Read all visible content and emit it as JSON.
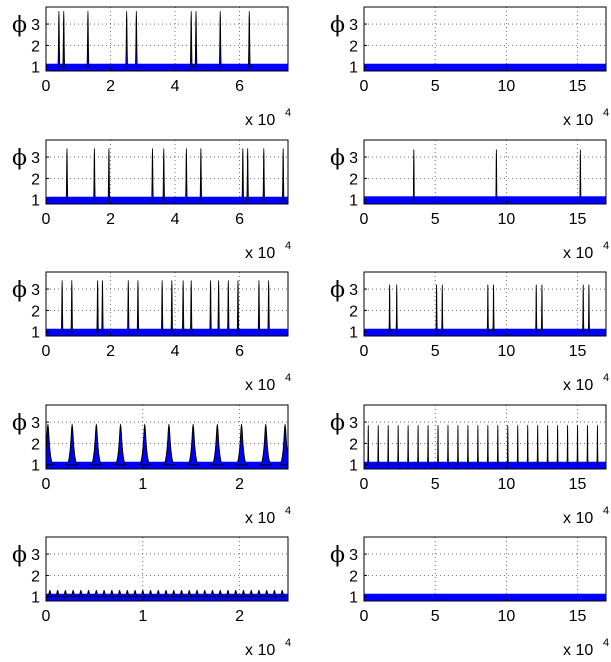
{
  "figure": {
    "y_symbol": "ϕ",
    "yticks": [
      1,
      2,
      3
    ],
    "exponent_base": "x 10",
    "exponent_power": "4",
    "colors": {
      "fill": "#0000ff",
      "edge": "#000000",
      "grid": "#555555"
    }
  },
  "chart_data": [
    {
      "type": "area",
      "panel": "row1-left",
      "ylim": [
        0.8,
        3.8
      ],
      "xlim": [
        0,
        7.5
      ],
      "xticks": [
        0,
        2,
        4,
        6
      ],
      "baseline": 1.0,
      "peak_height": 3.6,
      "peak_width": 0.04,
      "peaks": [
        0.4,
        0.55,
        1.3,
        2.5,
        2.8,
        4.5,
        4.65,
        5.4,
        6.3
      ]
    },
    {
      "type": "area",
      "panel": "row1-right",
      "ylim": [
        0.8,
        3.8
      ],
      "xlim": [
        0,
        17
      ],
      "xticks": [
        0,
        5,
        10,
        15
      ],
      "baseline": 1.0,
      "peak_height": 1.0,
      "peak_width": 0.1,
      "peaks": []
    },
    {
      "type": "area",
      "panel": "row2-left",
      "ylim": [
        0.8,
        3.8
      ],
      "xlim": [
        0,
        7.5
      ],
      "xticks": [
        0,
        2,
        4,
        6
      ],
      "baseline": 1.0,
      "peak_height": 3.4,
      "peak_width": 0.035,
      "peaks": [
        0.65,
        1.5,
        1.95,
        3.3,
        3.65,
        4.35,
        4.8,
        6.1,
        6.25,
        6.75,
        7.35
      ]
    },
    {
      "type": "area",
      "panel": "row2-right",
      "ylim": [
        0.8,
        3.8
      ],
      "xlim": [
        0,
        17
      ],
      "xticks": [
        0,
        5,
        10,
        15
      ],
      "baseline": 1.02,
      "peak_height": 3.35,
      "peak_width": 0.06,
      "peaks": [
        3.5,
        9.3,
        15.2
      ]
    },
    {
      "type": "area",
      "panel": "row3-left",
      "ylim": [
        0.8,
        3.8
      ],
      "xlim": [
        0,
        7.5
      ],
      "xticks": [
        0,
        2,
        4,
        6
      ],
      "baseline": 1.0,
      "peak_height": 3.4,
      "peak_width": 0.035,
      "peaks": [
        0.5,
        0.8,
        1.6,
        1.75,
        2.55,
        2.85,
        3.6,
        3.9,
        4.25,
        4.5,
        5.1,
        5.35,
        5.65,
        5.95,
        6.6,
        6.9
      ]
    },
    {
      "type": "area",
      "panel": "row3-right",
      "ylim": [
        0.8,
        3.8
      ],
      "xlim": [
        0,
        17
      ],
      "xticks": [
        0,
        5,
        10,
        15
      ],
      "baseline": 1.0,
      "peak_height": 3.2,
      "peak_width": 0.05,
      "peaks": [
        1.8,
        2.3,
        5.1,
        5.5,
        8.7,
        9.1,
        12.1,
        12.5,
        15.4,
        15.8
      ]
    },
    {
      "type": "area",
      "panel": "row4-left",
      "ylim": [
        0.8,
        3.8
      ],
      "xlim": [
        0,
        2.5
      ],
      "xticks": [
        0,
        1,
        2
      ],
      "baseline": 1.0,
      "peak_height": 2.9,
      "peak_width": 0.055,
      "peaks": [
        0.02,
        0.27,
        0.52,
        0.77,
        1.02,
        1.27,
        1.52,
        1.77,
        2.02,
        2.27,
        2.47
      ]
    },
    {
      "type": "area",
      "panel": "row4-right",
      "ylim": [
        0.8,
        3.8
      ],
      "xlim": [
        0,
        17
      ],
      "xticks": [
        0,
        5,
        10,
        15
      ],
      "baseline": 1.0,
      "peak_height": 2.85,
      "peak_width": 0.04,
      "peaks": [
        0.3,
        1.0,
        1.7,
        2.4,
        3.1,
        3.8,
        4.5,
        5.2,
        5.9,
        6.6,
        7.3,
        8.0,
        8.7,
        9.4,
        10.1,
        10.8,
        11.5,
        12.2,
        12.9,
        13.6,
        14.3,
        15.0,
        15.7,
        16.4
      ]
    },
    {
      "type": "area",
      "panel": "row5-left",
      "ylim": [
        0.8,
        3.8
      ],
      "xlim": [
        0,
        2.5
      ],
      "xticks": [
        0,
        1,
        2
      ],
      "baseline": 1.0,
      "peak_height": 1.3,
      "peak_width": 0.03,
      "peaks": [
        0.04,
        0.12,
        0.2,
        0.28,
        0.36,
        0.44,
        0.52,
        0.6,
        0.68,
        0.76,
        0.84,
        0.92,
        1.0,
        1.08,
        1.16,
        1.24,
        1.32,
        1.4,
        1.48,
        1.56,
        1.64,
        1.72,
        1.8,
        1.88,
        1.96,
        2.04,
        2.12,
        2.2,
        2.28,
        2.36,
        2.44
      ]
    },
    {
      "type": "area",
      "panel": "row5-right",
      "ylim": [
        0.8,
        3.8
      ],
      "xlim": [
        0,
        17
      ],
      "xticks": [
        0,
        5,
        10,
        15
      ],
      "baseline": 1.0,
      "peak_height": 1.0,
      "peak_width": 0.1,
      "peaks": []
    }
  ]
}
